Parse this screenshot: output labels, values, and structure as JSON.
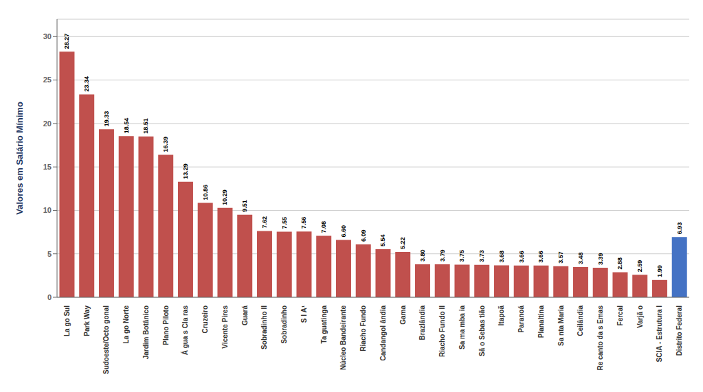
{
  "chart_data": {
    "type": "bar",
    "categories": [
      "La go Sul",
      "Park Way",
      "Sudoeste/Octo gonal",
      "La go Norte",
      "Jardim Botânico",
      "Plano Piloto",
      "Á gua s Cla ras",
      "Cruzeiro",
      "Vicente Pires",
      "Guará",
      "Sobradinho II",
      "Sobradinho",
      "S I A¹",
      "Ta guatinga",
      "Núcleo Bandeirante",
      "Riacho Fundo",
      "Candangol ândia",
      "Gama",
      "Brazlândia",
      "Riacho Fundo II",
      "Sa ma mba ia",
      "Sã o Sebas tião",
      "Itapoã",
      "Paranoá",
      "Planaltina",
      "Sa nta Maria",
      "Ceilândia",
      "Re canto da s Emas",
      "Fercal",
      "Varjã o",
      "SCIA - Estrutura I",
      "Distrito Federal"
    ],
    "values": [
      28.27,
      23.34,
      19.33,
      18.54,
      18.51,
      16.39,
      13.29,
      10.86,
      10.29,
      9.51,
      7.62,
      7.55,
      7.56,
      7.08,
      6.6,
      6.09,
      5.54,
      5.22,
      3.8,
      3.79,
      3.75,
      3.73,
      3.68,
      3.66,
      3.66,
      3.57,
      3.48,
      3.39,
      2.88,
      2.59,
      1.99,
      6.93
    ],
    "value_labels": [
      "28.27",
      "23.34",
      "19.33",
      "18.54",
      "18.51",
      "16.39",
      "13.29",
      "10.86",
      "10.29",
      "9.51",
      "7.62",
      "7.55",
      "7.56",
      "7.08",
      "6.60",
      "6.09",
      "5.54",
      "5.22",
      "3.80",
      "3.79",
      "3.75",
      "3.73",
      "3.68",
      "3.66",
      "3.66",
      "3.57",
      "3.48",
      "3.39",
      "2.88",
      "2.59",
      "1.99",
      "6.93"
    ],
    "colors": [
      "#c0504d",
      "#c0504d",
      "#c0504d",
      "#c0504d",
      "#c0504d",
      "#c0504d",
      "#c0504d",
      "#c0504d",
      "#c0504d",
      "#c0504d",
      "#c0504d",
      "#c0504d",
      "#c0504d",
      "#c0504d",
      "#c0504d",
      "#c0504d",
      "#c0504d",
      "#c0504d",
      "#c0504d",
      "#c0504d",
      "#c0504d",
      "#c0504d",
      "#c0504d",
      "#c0504d",
      "#c0504d",
      "#c0504d",
      "#c0504d",
      "#c0504d",
      "#c0504d",
      "#c0504d",
      "#c0504d",
      "#4472c4"
    ],
    "ylabel": "Valores em Salário Mínimo",
    "ylim": [
      0,
      32
    ],
    "yticks": [
      0,
      5,
      10,
      15,
      20,
      25,
      30
    ],
    "grid": true,
    "data_labels": true
  }
}
